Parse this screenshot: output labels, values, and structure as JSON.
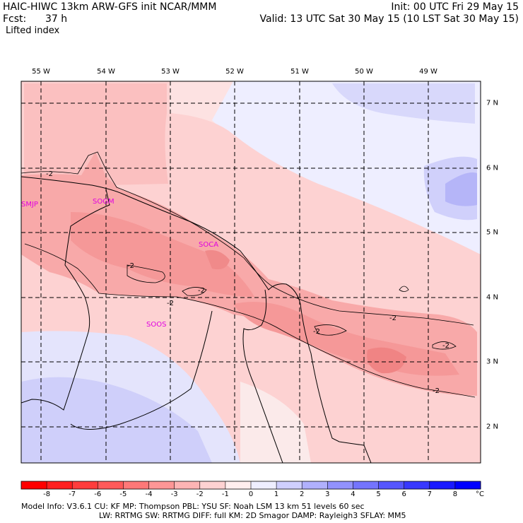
{
  "header": {
    "title_left": "HAIC-HIWC 13km ARW-GFS init   NCAR/MMM",
    "fcst_label": "Fcst:",
    "fcst_value": "37 h",
    "field_name": "Lifted index",
    "init": "Init: 00 UTC Fri 29 May 15",
    "valid": "Valid: 13 UTC Sat 30 May 15 (10 LST Sat 30 May 15)"
  },
  "axes": {
    "longitudes": [
      "55 W",
      "54 W",
      "53 W",
      "52 W",
      "51 W",
      "50 W",
      "49 W"
    ],
    "latitudes": [
      "7 N",
      "6 N",
      "5 N",
      "4 N",
      "3 N",
      "2 N"
    ]
  },
  "stations": [
    "SMJP",
    "SOGM",
    "SOCA",
    "SOOS"
  ],
  "contour_labels": [
    "-2",
    "-2",
    "-2",
    "-2",
    "-2",
    "-2",
    "-2",
    "-2"
  ],
  "colorbar": {
    "ticks": [
      "-8",
      "-7",
      "-6",
      "-5",
      "-4",
      "-3",
      "-2",
      "-1",
      "0",
      "1",
      "2",
      "3",
      "4",
      "5",
      "6",
      "7",
      "8"
    ],
    "unit": "°C",
    "colors": [
      "#ff0000",
      "#ff1f1f",
      "#ff3d3d",
      "#ff5a5a",
      "#fe7878",
      "#fd9696",
      "#fdb4b4",
      "#fed2d2",
      "#ffeeee",
      "#eeeeff",
      "#cfcffe",
      "#b0b0fd",
      "#9292fd",
      "#7474fd",
      "#5656fe",
      "#3838fe",
      "#1a1aff",
      "#0000ff"
    ]
  },
  "footer": {
    "line1": "Model Info: V3.6.1     CU: KF        MP: Thompson      PBL: YSU       SF: Noah LSM     13 km    51 levels   60 sec",
    "line2": "LW: RRTMG    SW: RRTMG   DIFF: full    KM: 2D Smagor DAMP: Rayleigh3  SFLAY: MM5"
  }
}
